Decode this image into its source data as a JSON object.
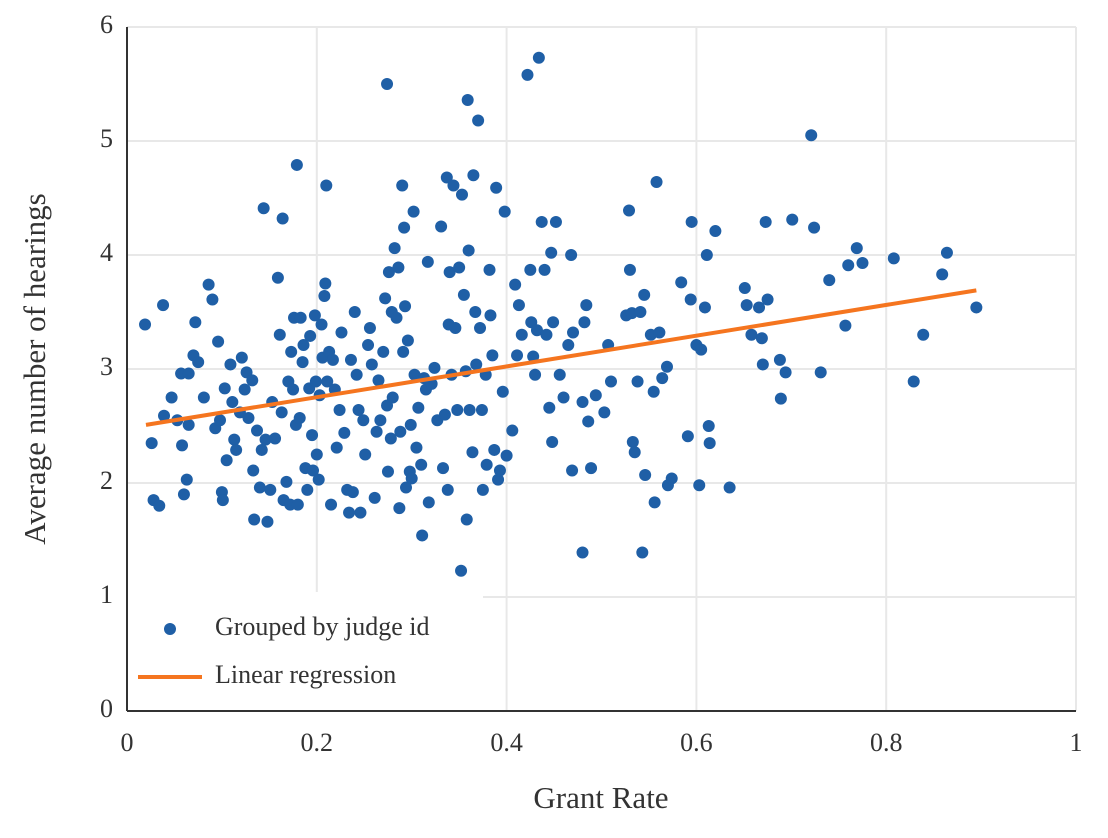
{
  "chart_data": {
    "type": "scatter",
    "xlabel": "Grant Rate",
    "ylabel": "Average number of hearings",
    "xlim": [
      0,
      1
    ],
    "ylim": [
      0,
      6
    ],
    "xticks": [
      0,
      0.2,
      0.4,
      0.6,
      0.8,
      1
    ],
    "yticks": [
      0,
      1,
      2,
      3,
      4,
      5,
      6
    ],
    "grid": true,
    "legend": "lower left",
    "series": [
      {
        "name": "Grouped by judge id",
        "type": "scatter",
        "color": "#1f5fa6",
        "x": [
          0.019,
          0.026,
          0.028,
          0.034,
          0.038,
          0.039,
          0.047,
          0.053,
          0.057,
          0.058,
          0.06,
          0.063,
          0.065,
          0.065,
          0.07,
          0.072,
          0.075,
          0.081,
          0.086,
          0.09,
          0.093,
          0.096,
          0.098,
          0.1,
          0.101,
          0.103,
          0.105,
          0.109,
          0.111,
          0.113,
          0.115,
          0.119,
          0.121,
          0.124,
          0.126,
          0.128,
          0.132,
          0.133,
          0.134,
          0.137,
          0.14,
          0.142,
          0.144,
          0.146,
          0.148,
          0.151,
          0.153,
          0.156,
          0.159,
          0.161,
          0.163,
          0.164,
          0.165,
          0.168,
          0.17,
          0.172,
          0.173,
          0.175,
          0.176,
          0.178,
          0.179,
          0.18,
          0.182,
          0.183,
          0.185,
          0.186,
          0.188,
          0.19,
          0.192,
          0.193,
          0.195,
          0.196,
          0.198,
          0.199,
          0.2,
          0.202,
          0.203,
          0.205,
          0.206,
          0.208,
          0.209,
          0.21,
          0.211,
          0.213,
          0.215,
          0.217,
          0.219,
          0.221,
          0.224,
          0.226,
          0.229,
          0.232,
          0.234,
          0.236,
          0.238,
          0.24,
          0.242,
          0.244,
          0.246,
          0.249,
          0.251,
          0.254,
          0.256,
          0.258,
          0.261,
          0.263,
          0.265,
          0.267,
          0.27,
          0.272,
          0.274,
          0.274,
          0.275,
          0.276,
          0.278,
          0.279,
          0.28,
          0.282,
          0.284,
          0.286,
          0.287,
          0.288,
          0.29,
          0.291,
          0.292,
          0.293,
          0.294,
          0.296,
          0.298,
          0.299,
          0.3,
          0.302,
          0.303,
          0.305,
          0.307,
          0.31,
          0.311,
          0.313,
          0.315,
          0.317,
          0.318,
          0.321,
          0.324,
          0.327,
          0.331,
          0.333,
          0.335,
          0.337,
          0.338,
          0.339,
          0.34,
          0.342,
          0.344,
          0.346,
          0.348,
          0.35,
          0.352,
          0.353,
          0.355,
          0.357,
          0.358,
          0.359,
          0.36,
          0.361,
          0.364,
          0.365,
          0.367,
          0.368,
          0.37,
          0.372,
          0.374,
          0.375,
          0.378,
          0.379,
          0.382,
          0.383,
          0.385,
          0.387,
          0.389,
          0.391,
          0.393,
          0.396,
          0.398,
          0.4,
          0.406,
          0.409,
          0.411,
          0.413,
          0.416,
          0.422,
          0.425,
          0.426,
          0.428,
          0.43,
          0.432,
          0.434,
          0.437,
          0.44,
          0.442,
          0.445,
          0.447,
          0.448,
          0.449,
          0.452,
          0.456,
          0.46,
          0.465,
          0.468,
          0.469,
          0.47,
          0.48,
          0.48,
          0.482,
          0.484,
          0.486,
          0.489,
          0.494,
          0.503,
          0.507,
          0.51,
          0.526,
          0.529,
          0.53,
          0.532,
          0.533,
          0.535,
          0.538,
          0.541,
          0.543,
          0.545,
          0.546,
          0.552,
          0.555,
          0.556,
          0.558,
          0.561,
          0.564,
          0.569,
          0.57,
          0.574,
          0.584,
          0.591,
          0.594,
          0.595,
          0.6,
          0.603,
          0.605,
          0.609,
          0.611,
          0.613,
          0.614,
          0.62,
          0.635,
          0.651,
          0.653,
          0.658,
          0.666,
          0.669,
          0.67,
          0.673,
          0.675,
          0.688,
          0.689,
          0.694,
          0.701,
          0.721,
          0.724,
          0.731,
          0.74,
          0.757,
          0.76,
          0.769,
          0.775,
          0.808,
          0.829,
          0.839,
          0.859,
          0.864,
          0.895
        ],
        "values": [
          3.39,
          2.35,
          1.85,
          1.8,
          3.56,
          2.59,
          2.75,
          2.55,
          2.96,
          2.33,
          1.9,
          2.03,
          2.51,
          2.96,
          3.12,
          3.41,
          3.06,
          2.75,
          3.74,
          3.61,
          2.48,
          3.24,
          2.55,
          1.92,
          1.85,
          2.83,
          2.2,
          3.04,
          2.71,
          2.38,
          2.29,
          2.62,
          3.1,
          2.82,
          2.97,
          2.57,
          2.9,
          2.11,
          1.68,
          2.46,
          1.96,
          2.29,
          4.41,
          2.38,
          1.66,
          1.94,
          2.71,
          2.39,
          3.8,
          3.3,
          2.62,
          4.32,
          1.85,
          2.01,
          2.89,
          1.81,
          3.15,
          2.82,
          3.45,
          2.51,
          4.79,
          1.81,
          2.57,
          3.45,
          3.06,
          3.21,
          2.13,
          1.94,
          2.83,
          3.29,
          2.42,
          2.11,
          3.47,
          2.89,
          2.25,
          2.03,
          2.77,
          3.39,
          3.1,
          3.64,
          3.75,
          4.61,
          2.89,
          3.15,
          1.81,
          3.08,
          2.82,
          2.31,
          2.64,
          3.32,
          2.44,
          1.94,
          1.74,
          3.08,
          1.92,
          3.5,
          2.95,
          2.64,
          1.74,
          2.55,
          2.25,
          3.21,
          3.36,
          3.04,
          1.87,
          2.45,
          2.9,
          2.55,
          3.15,
          3.62,
          2.68,
          5.5,
          2.1,
          3.85,
          2.39,
          3.5,
          2.75,
          4.06,
          3.45,
          3.89,
          1.78,
          2.45,
          4.61,
          3.15,
          4.24,
          3.55,
          1.96,
          3.25,
          2.1,
          2.51,
          2.04,
          4.38,
          2.95,
          2.31,
          2.66,
          2.16,
          1.54,
          2.92,
          2.82,
          3.94,
          1.83,
          2.87,
          3.01,
          2.55,
          4.25,
          2.13,
          2.6,
          4.68,
          1.94,
          3.39,
          3.85,
          2.95,
          4.61,
          3.36,
          2.64,
          3.89,
          1.23,
          4.53,
          3.65,
          2.98,
          1.68,
          5.36,
          4.04,
          2.64,
          2.27,
          4.7,
          3.5,
          3.04,
          5.18,
          3.36,
          2.64,
          1.94,
          2.95,
          2.16,
          3.87,
          3.47,
          3.12,
          2.29,
          4.59,
          2.03,
          2.11,
          2.8,
          4.38,
          2.24,
          2.46,
          3.74,
          3.12,
          3.56,
          3.3,
          5.58,
          3.87,
          3.41,
          3.11,
          2.95,
          3.34,
          5.73,
          4.29,
          3.87,
          3.3,
          2.66,
          4.02,
          2.36,
          3.41,
          4.29,
          2.95,
          2.75,
          3.21,
          4.0,
          2.11,
          3.32,
          1.39,
          2.71,
          3.41,
          3.56,
          2.54,
          2.13,
          2.77,
          2.62,
          3.21,
          2.89,
          3.47,
          4.39,
          3.87,
          3.49,
          2.36,
          2.27,
          2.89,
          3.5,
          1.39,
          3.65,
          2.07,
          3.3,
          2.8,
          1.83,
          4.64,
          3.32,
          2.92,
          3.02,
          1.98,
          2.04,
          3.76,
          2.41,
          3.61,
          4.29,
          3.21,
          1.98,
          3.17,
          3.54,
          4.0,
          2.5,
          2.35,
          4.21,
          1.96,
          3.71,
          3.56,
          3.3,
          3.54,
          3.27,
          3.04,
          4.29,
          3.61,
          3.08,
          2.74,
          2.97,
          4.31,
          5.05,
          4.24,
          2.97,
          3.78,
          3.38,
          3.91,
          4.06,
          3.93,
          3.97,
          2.89,
          3.3,
          3.83,
          4.02,
          3.54
        ]
      },
      {
        "name": "Linear regression",
        "type": "line",
        "color": "#f5751f",
        "x": [
          0.02,
          0.895
        ],
        "values": [
          2.51,
          3.69
        ]
      }
    ]
  }
}
